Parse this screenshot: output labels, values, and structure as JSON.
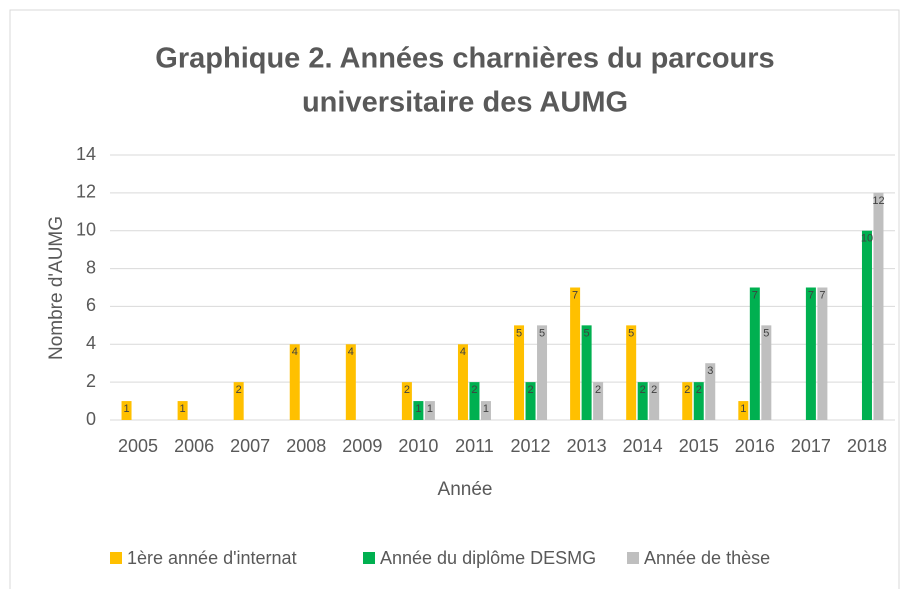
{
  "chart_data": {
    "type": "bar",
    "title": [
      "Graphique 2. Années charnières du parcours",
      "universitaire des AUMG"
    ],
    "x_label": "Année",
    "y_label": "Nombre d'AUMG",
    "categories": [
      "2005",
      "2006",
      "2007",
      "2008",
      "2009",
      "2010",
      "2011",
      "2012",
      "2013",
      "2014",
      "2015",
      "2016",
      "2017",
      "2018"
    ],
    "series": [
      {
        "name": "1ère année d'internat",
        "color": "#FFC000",
        "values": [
          1,
          1,
          2,
          4,
          4,
          2,
          4,
          5,
          7,
          5,
          2,
          1,
          null,
          null
        ]
      },
      {
        "name": "Année du diplôme DESMG",
        "color": "#00B050",
        "values": [
          null,
          null,
          null,
          null,
          null,
          1,
          2,
          2,
          5,
          2,
          2,
          7,
          7,
          10
        ]
      },
      {
        "name": "Année de thèse",
        "color": "#BFBFBF",
        "values": [
          null,
          null,
          null,
          null,
          null,
          1,
          1,
          5,
          2,
          2,
          3,
          5,
          7,
          12
        ]
      }
    ],
    "ylim": [
      0,
      14
    ],
    "yticks": [
      0,
      2,
      4,
      6,
      8,
      10,
      12,
      14
    ],
    "grid": true,
    "legend": "bottom"
  }
}
